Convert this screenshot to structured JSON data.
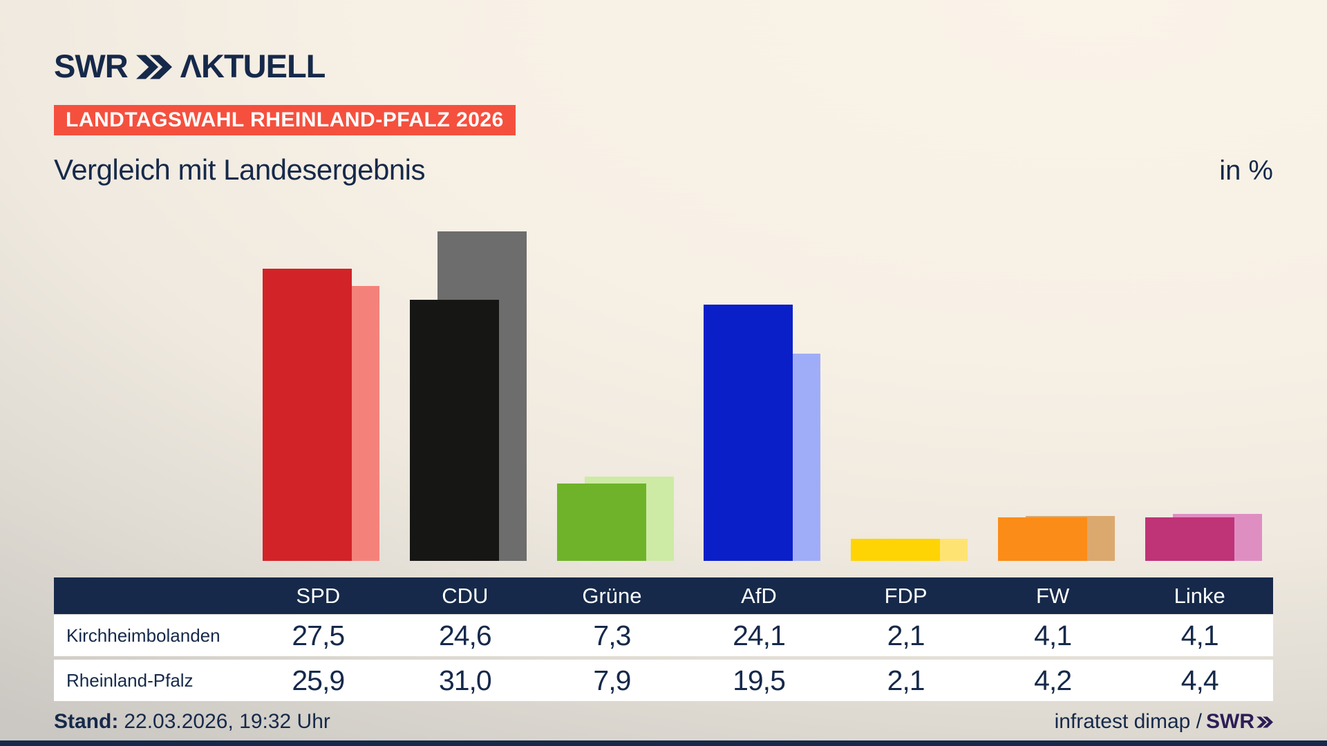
{
  "header": {
    "logo_brand": "SWR",
    "logo_product": "ΛKTUELL",
    "banner": "LANDTAGSWAHL RHEINLAND-PFALZ 2026",
    "title": "Vergleich mit Landesergebnis",
    "unit": "in %"
  },
  "chart_data": {
    "type": "bar",
    "title": "Vergleich mit Landesergebnis",
    "subtitle": "Landtagswahl Rheinland-Pfalz 2026",
    "unit": "%",
    "categories": [
      "SPD",
      "CDU",
      "Grüne",
      "AfD",
      "FDP",
      "FW",
      "Linke"
    ],
    "series": [
      {
        "name": "Kirchheimbolanden",
        "values": [
          27.5,
          24.6,
          7.3,
          24.1,
          2.1,
          4.1,
          4.1
        ]
      },
      {
        "name": "Rheinland-Pfalz",
        "values": [
          25.9,
          31.0,
          7.9,
          19.5,
          2.1,
          4.2,
          4.4
        ]
      }
    ],
    "colors_main": [
      "#d22328",
      "#161615",
      "#6fb32a",
      "#0b1fc9",
      "#ffd404",
      "#fb8c17",
      "#bf3377"
    ],
    "colors_state": [
      "#f5827a",
      "#6e6d6d",
      "#cdeba4",
      "#9fadf8",
      "#ffe372",
      "#dba96e",
      "#df8ec2"
    ],
    "ylim": [
      0,
      35
    ],
    "grid": false,
    "legend_position": "table below chart",
    "bar_style": "overlapping pair; local result in front, state result lighter behind, offset right"
  },
  "table": {
    "columns": [
      "SPD",
      "CDU",
      "Grüne",
      "AfD",
      "FDP",
      "FW",
      "Linke"
    ],
    "rows": [
      {
        "label": "Kirchheimbolanden",
        "values": [
          "27,5",
          "24,6",
          "7,3",
          "24,1",
          "2,1",
          "4,1",
          "4,1"
        ]
      },
      {
        "label": "Rheinland-Pfalz",
        "values": [
          "25,9",
          "31,0",
          "7,9",
          "19,5",
          "2,1",
          "4,2",
          "4,4"
        ]
      }
    ]
  },
  "footer": {
    "stand_label": "Stand:",
    "stand_value": "22.03.2026, 19:32 Uhr",
    "source_text": "infratest dimap /",
    "source_brand": "SWR"
  },
  "colors": {
    "navy": "#16294a",
    "banner_red": "#f5503e",
    "brand_purple": "#2d1d56",
    "row_white": "#ffffff",
    "background_cream": "#f7f0e5",
    "background_gray": "#cbc8c3"
  }
}
